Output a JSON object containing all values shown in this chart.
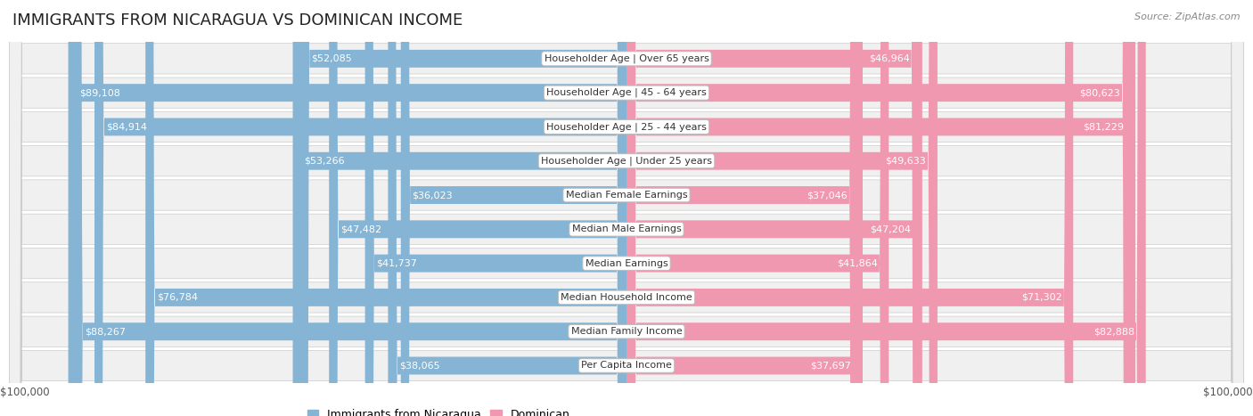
{
  "title": "IMMIGRANTS FROM NICARAGUA VS DOMINICAN INCOME",
  "source": "Source: ZipAtlas.com",
  "categories": [
    "Per Capita Income",
    "Median Family Income",
    "Median Household Income",
    "Median Earnings",
    "Median Male Earnings",
    "Median Female Earnings",
    "Householder Age | Under 25 years",
    "Householder Age | 25 - 44 years",
    "Householder Age | 45 - 64 years",
    "Householder Age | Over 65 years"
  ],
  "nicaragua_values": [
    38065,
    88267,
    76784,
    41737,
    47482,
    36023,
    53266,
    84914,
    89108,
    52085
  ],
  "dominican_values": [
    37697,
    82888,
    71302,
    41864,
    47204,
    37046,
    49633,
    81229,
    80623,
    46964
  ],
  "nicaragua_labels": [
    "$38,065",
    "$88,267",
    "$76,784",
    "$41,737",
    "$47,482",
    "$36,023",
    "$53,266",
    "$84,914",
    "$89,108",
    "$52,085"
  ],
  "dominican_labels": [
    "$37,697",
    "$82,888",
    "$71,302",
    "$41,864",
    "$47,204",
    "$37,046",
    "$49,633",
    "$81,229",
    "$80,623",
    "$46,964"
  ],
  "nicaragua_color": "#85b4d4",
  "dominican_color": "#f098b0",
  "nicaragua_label_color_inside": "#ffffff",
  "nicaragua_label_color_outside": "#555555",
  "dominican_label_color_inside": "#ffffff",
  "dominican_label_color_outside": "#555555",
  "inside_threshold": 25000,
  "max_value": 100000,
  "row_bg_color": "#f0f0f0",
  "row_border_color": "#cccccc",
  "legend_nicaragua": "Immigrants from Nicaragua",
  "legend_dominican": "Dominican",
  "xlabel_left": "$100,000",
  "xlabel_right": "$100,000",
  "title_fontsize": 13,
  "label_fontsize": 8,
  "category_fontsize": 8,
  "source_fontsize": 8
}
